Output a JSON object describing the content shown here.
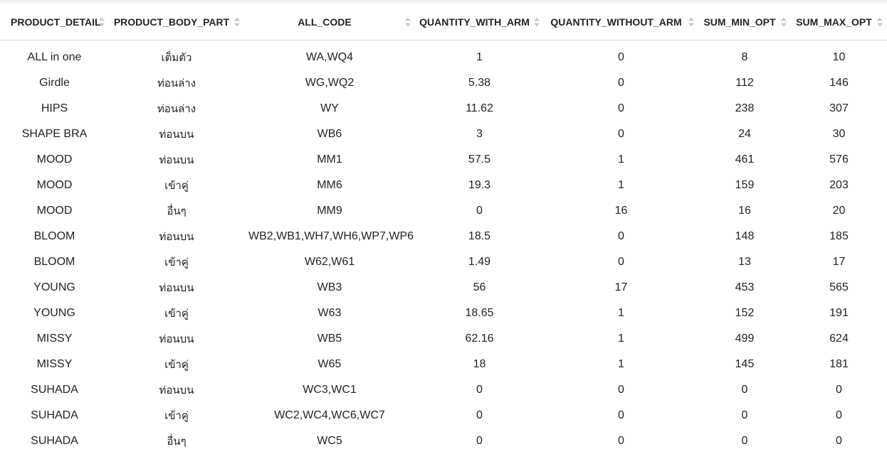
{
  "table": {
    "columns": [
      "PRODUCT_DETAIL",
      "PRODUCT_BODY_PART",
      "ALL_CODE",
      "QUANTITY_WITH_ARM",
      "QUANTITY_WITHOUT_ARM",
      "SUM_MIN_OPT",
      "SUM_MAX_OPT"
    ],
    "rows": [
      [
        "ALL in one",
        "เต็มตัว",
        "WA,WQ4",
        "1",
        "0",
        "8",
        "10"
      ],
      [
        "Girdle",
        "ท่อนล่าง",
        "WG,WQ2",
        "5.38",
        "0",
        "112",
        "146"
      ],
      [
        "HIPS",
        "ท่อนล่าง",
        "WY",
        "11.62",
        "0",
        "238",
        "307"
      ],
      [
        "SHAPE BRA",
        "ท่อนบน",
        "WB6",
        "3",
        "0",
        "24",
        "30"
      ],
      [
        "MOOD",
        "ท่อนบน",
        "MM1",
        "57.5",
        "1",
        "461",
        "576"
      ],
      [
        "MOOD",
        "เข้าคู่",
        "MM6",
        "19.3",
        "1",
        "159",
        "203"
      ],
      [
        "MOOD",
        "อื่นๆ",
        "MM9",
        "0",
        "16",
        "16",
        "20"
      ],
      [
        "BLOOM",
        "ท่อนบน",
        "WB2,WB1,WH7,WH6,WP7,WP6",
        "18.5",
        "0",
        "148",
        "185"
      ],
      [
        "BLOOM",
        "เข้าคู่",
        "W62,W61",
        "1.49",
        "0",
        "13",
        "17"
      ],
      [
        "YOUNG",
        "ท่อนบน",
        "WB3",
        "56",
        "17",
        "453",
        "565"
      ],
      [
        "YOUNG",
        "เข้าคู่",
        "W63",
        "18.65",
        "1",
        "152",
        "191"
      ],
      [
        "MISSY",
        "ท่อนบน",
        "WB5",
        "62.16",
        "1",
        "499",
        "624"
      ],
      [
        "MISSY",
        "เข้าคู่",
        "W65",
        "18",
        "1",
        "145",
        "181"
      ],
      [
        "SUHADA",
        "ท่อนบน",
        "WC3,WC1",
        "0",
        "0",
        "0",
        "0"
      ],
      [
        "SUHADA",
        "เข้าคู่",
        "WC2,WC4,WC6,WC7",
        "0",
        "0",
        "0",
        "0"
      ],
      [
        "SUHADA",
        "อื่นๆ",
        "WC5",
        "0",
        "0",
        "0",
        "0"
      ]
    ]
  },
  "icons": {
    "sort": "sort-both-icon"
  }
}
